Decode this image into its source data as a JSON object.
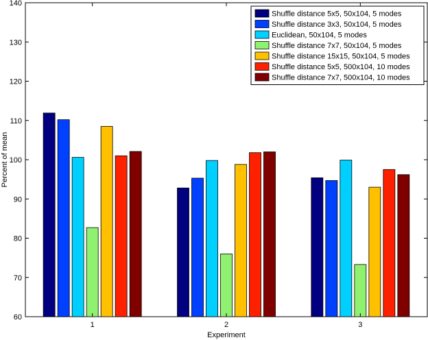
{
  "chart_data": {
    "type": "bar",
    "title": "",
    "xlabel": "Experiment",
    "ylabel": "Percent of mean",
    "categories": [
      "1",
      "2",
      "3"
    ],
    "ylim": [
      60,
      140
    ],
    "yticks": [
      60,
      70,
      80,
      90,
      100,
      110,
      120,
      130,
      140
    ],
    "grid": false,
    "legend_position": "top-right",
    "series": [
      {
        "name": "Shuffle distance 5x5, 50x104, 5 modes",
        "color": "#000080",
        "values": [
          111.9,
          92.8,
          95.4
        ]
      },
      {
        "name": "Shuffle distance 3x3, 50x104, 5 modes",
        "color": "#0040ff",
        "values": [
          110.2,
          95.3,
          94.7
        ]
      },
      {
        "name": "Euclidean, 50x104, 5 modes",
        "color": "#00d0ff",
        "values": [
          100.6,
          99.8,
          99.9
        ]
      },
      {
        "name": "Shuffle distance 7x7, 50x104, 5 modes",
        "color": "#90f070",
        "values": [
          82.7,
          76.0,
          73.3
        ]
      },
      {
        "name": "Shuffle distance 15x15, 50x104, 5 modes",
        "color": "#ffc000",
        "values": [
          108.5,
          98.8,
          93.0
        ]
      },
      {
        "name": "Shuffle distance 5x5, 500x104, 10 modes",
        "color": "#ff2000",
        "values": [
          101.0,
          101.8,
          97.5
        ]
      },
      {
        "name": "Shuffle distance 7x7, 500x104, 10 modes",
        "color": "#800000",
        "values": [
          102.1,
          102.0,
          96.2
        ]
      }
    ]
  }
}
